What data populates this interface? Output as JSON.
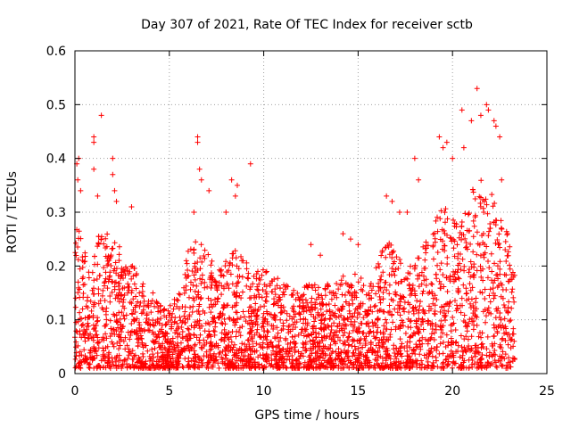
{
  "chart_data": {
    "type": "scatter",
    "title": "Day 307 of 2021, Rate Of TEC Index for receiver sctb",
    "xlabel": "GPS time / hours",
    "ylabel": "ROTI / TECUs",
    "xlim": [
      0,
      25
    ],
    "ylim": [
      0,
      0.6
    ],
    "xticks": [
      "0",
      "5",
      "10",
      "15",
      "20",
      "25"
    ],
    "yticks": [
      "0",
      "0.1",
      "0.2",
      "0.3",
      "0.4",
      "0.5",
      "0.6"
    ],
    "grid": true,
    "marker": "+",
    "color": "#ff0000",
    "envelope": {
      "x": [
        0,
        0.5,
        1,
        1.5,
        2,
        2.5,
        3,
        3.5,
        4,
        4.5,
        5,
        5.5,
        6,
        6.5,
        7,
        7.5,
        8,
        8.5,
        9,
        9.5,
        10,
        10.5,
        11,
        11.5,
        12,
        12.5,
        13,
        13.5,
        14,
        14.5,
        15,
        15.5,
        16,
        16.5,
        17,
        17.5,
        18,
        18.5,
        19,
        19.5,
        20,
        20.5,
        21,
        21.5,
        22,
        22.5,
        23,
        23.3
      ],
      "y": [
        0.3,
        0.22,
        0.24,
        0.26,
        0.25,
        0.22,
        0.2,
        0.17,
        0.15,
        0.12,
        0.12,
        0.14,
        0.22,
        0.24,
        0.22,
        0.18,
        0.2,
        0.22,
        0.2,
        0.18,
        0.2,
        0.18,
        0.16,
        0.15,
        0.15,
        0.16,
        0.15,
        0.16,
        0.17,
        0.18,
        0.18,
        0.17,
        0.19,
        0.24,
        0.22,
        0.18,
        0.2,
        0.23,
        0.27,
        0.3,
        0.3,
        0.28,
        0.33,
        0.35,
        0.33,
        0.3,
        0.24,
        0.22
      ]
    },
    "outliers": [
      [
        0.1,
        0.39
      ],
      [
        0.2,
        0.4
      ],
      [
        0.15,
        0.36
      ],
      [
        0.3,
        0.34
      ],
      [
        1.0,
        0.44
      ],
      [
        1.0,
        0.43
      ],
      [
        1.0,
        0.38
      ],
      [
        1.4,
        0.48
      ],
      [
        1.2,
        0.33
      ],
      [
        2.0,
        0.4
      ],
      [
        2.0,
        0.37
      ],
      [
        2.1,
        0.34
      ],
      [
        2.2,
        0.32
      ],
      [
        3.0,
        0.31
      ],
      [
        6.5,
        0.44
      ],
      [
        6.5,
        0.43
      ],
      [
        6.6,
        0.38
      ],
      [
        6.7,
        0.36
      ],
      [
        7.1,
        0.34
      ],
      [
        6.3,
        0.3
      ],
      [
        8.3,
        0.36
      ],
      [
        8.6,
        0.35
      ],
      [
        8.5,
        0.33
      ],
      [
        8.0,
        0.3
      ],
      [
        9.3,
        0.39
      ],
      [
        12.5,
        0.24
      ],
      [
        13.0,
        0.22
      ],
      [
        14.2,
        0.26
      ],
      [
        14.6,
        0.25
      ],
      [
        15.0,
        0.24
      ],
      [
        16.5,
        0.33
      ],
      [
        16.8,
        0.32
      ],
      [
        17.2,
        0.3
      ],
      [
        17.6,
        0.3
      ],
      [
        18.0,
        0.4
      ],
      [
        18.2,
        0.36
      ],
      [
        19.3,
        0.44
      ],
      [
        19.5,
        0.42
      ],
      [
        19.7,
        0.43
      ],
      [
        20.0,
        0.4
      ],
      [
        20.5,
        0.49
      ],
      [
        20.6,
        0.42
      ],
      [
        21.0,
        0.47
      ],
      [
        21.3,
        0.53
      ],
      [
        21.5,
        0.48
      ],
      [
        21.8,
        0.5
      ],
      [
        21.9,
        0.49
      ],
      [
        22.2,
        0.47
      ],
      [
        22.3,
        0.46
      ],
      [
        22.5,
        0.44
      ],
      [
        22.6,
        0.36
      ]
    ]
  }
}
